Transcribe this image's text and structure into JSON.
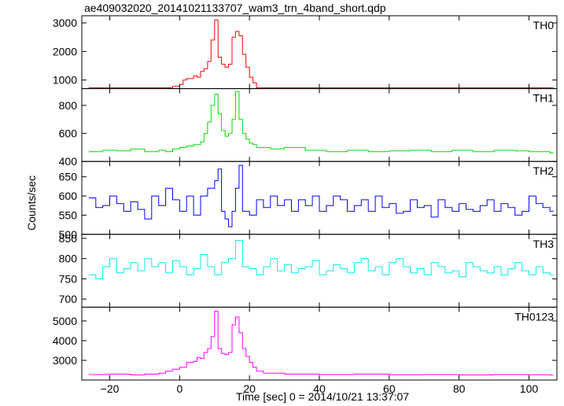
{
  "window_title": "ae409032020_20141021133707_wam3_trn_4band_short.qdp",
  "chart_data": {
    "type": "line",
    "title": "ae409032020_20141021133707_wam3_trn_4band_short.qdp",
    "xlabel": "Time [sec] 0 = 2014/10/21 13:37:07",
    "ylabel": "Counts/sec",
    "xlim": [
      -28,
      108
    ],
    "xticks": [
      -20,
      0,
      20,
      40,
      60,
      80,
      100
    ],
    "series": [
      {
        "name": "TH0",
        "color": "#ff0000",
        "ylim": [
          700,
          3250
        ],
        "yticks": [
          1000,
          2000,
          3000
        ],
        "x": [
          -26,
          -18,
          -12,
          -8,
          -6,
          -4,
          -2,
          0,
          1,
          2,
          3,
          4,
          5,
          6,
          7,
          8,
          9,
          10,
          11,
          12,
          13,
          14,
          15,
          16,
          17,
          18,
          19,
          20,
          21,
          22,
          24,
          30,
          40,
          50,
          60,
          70,
          80,
          90,
          100,
          106
        ],
        "values": [
          540,
          560,
          550,
          580,
          610,
          700,
          780,
          850,
          1000,
          1050,
          1050,
          1150,
          1100,
          1300,
          1400,
          1650,
          2400,
          3100,
          1800,
          1550,
          1450,
          1550,
          2500,
          2700,
          2550,
          1900,
          1450,
          1100,
          900,
          720,
          600,
          560,
          550,
          570,
          540,
          550,
          540,
          560,
          540,
          540
        ]
      },
      {
        "name": "TH1",
        "color": "#00dd00",
        "ylim": [
          400,
          920
        ],
        "yticks": [
          400,
          600,
          800
        ],
        "x": [
          -26,
          -22,
          -18,
          -14,
          -10,
          -6,
          -4,
          -2,
          0,
          2,
          4,
          6,
          7,
          8,
          9,
          10,
          11,
          12,
          13,
          14,
          15,
          16,
          17,
          18,
          19,
          20,
          21,
          22,
          26,
          30,
          36,
          42,
          48,
          54,
          60,
          66,
          72,
          78,
          84,
          90,
          96,
          100,
          106
        ],
        "values": [
          470,
          480,
          475,
          490,
          470,
          480,
          470,
          490,
          500,
          510,
          520,
          540,
          600,
          680,
          800,
          880,
          740,
          620,
          580,
          600,
          700,
          900,
          700,
          600,
          560,
          530,
          520,
          500,
          490,
          500,
          480,
          470,
          480,
          470,
          475,
          480,
          470,
          480,
          470,
          480,
          475,
          470,
          460
        ]
      },
      {
        "name": "TH2",
        "color": "#0000ff",
        "ylim": [
          500,
          690
        ],
        "yticks": [
          500,
          550,
          600,
          650
        ],
        "x": [
          -26,
          -24,
          -22,
          -20,
          -18,
          -16,
          -14,
          -12,
          -10,
          -8,
          -6,
          -4,
          -2,
          0,
          2,
          4,
          6,
          8,
          10,
          11,
          12,
          13,
          14,
          15,
          16,
          17,
          18,
          20,
          22,
          24,
          26,
          28,
          30,
          32,
          34,
          36,
          38,
          40,
          42,
          44,
          46,
          48,
          50,
          52,
          54,
          56,
          58,
          60,
          62,
          64,
          66,
          68,
          70,
          72,
          74,
          76,
          78,
          80,
          82,
          84,
          86,
          88,
          90,
          92,
          94,
          96,
          98,
          100,
          102,
          104,
          106
        ],
        "values": [
          595,
          570,
          575,
          600,
          580,
          560,
          585,
          565,
          540,
          600,
          575,
          620,
          590,
          560,
          600,
          550,
          600,
          620,
          640,
          670,
          560,
          540,
          520,
          560,
          620,
          680,
          560,
          550,
          590,
          570,
          600,
          575,
          590,
          560,
          590,
          575,
          600,
          560,
          575,
          600,
          590,
          560,
          575,
          590,
          560,
          600,
          570,
          580,
          555,
          560,
          590,
          570,
          575,
          545,
          590,
          570,
          560,
          580,
          565,
          560,
          575,
          590,
          560,
          580,
          570,
          550,
          560,
          600,
          580,
          570,
          560
        ]
      },
      {
        "name": "TH3",
        "color": "#00eeee",
        "ylim": [
          680,
          860
        ],
        "yticks": [
          700,
          750,
          800,
          850
        ],
        "x": [
          -26,
          -24,
          -22,
          -20,
          -18,
          -16,
          -14,
          -12,
          -10,
          -8,
          -6,
          -4,
          -2,
          0,
          2,
          4,
          6,
          8,
          10,
          12,
          14,
          16,
          18,
          20,
          22,
          24,
          26,
          28,
          30,
          32,
          34,
          36,
          38,
          40,
          42,
          44,
          46,
          48,
          50,
          52,
          54,
          56,
          58,
          60,
          62,
          64,
          66,
          68,
          70,
          72,
          74,
          76,
          78,
          80,
          82,
          84,
          86,
          88,
          90,
          92,
          94,
          96,
          98,
          100,
          102,
          104,
          106
        ],
        "values": [
          760,
          750,
          780,
          800,
          765,
          775,
          790,
          770,
          800,
          780,
          790,
          765,
          795,
          780,
          760,
          775,
          810,
          780,
          760,
          790,
          800,
          845,
          780,
          775,
          760,
          780,
          800,
          770,
          785,
          765,
          775,
          780,
          795,
          760,
          770,
          785,
          775,
          765,
          790,
          800,
          770,
          780,
          760,
          790,
          800,
          780,
          765,
          775,
          760,
          790,
          780,
          765,
          770,
          755,
          790,
          780,
          770,
          765,
          780,
          760,
          775,
          790,
          770,
          760,
          780,
          765,
          760
        ]
      },
      {
        "name": "TH0123",
        "color": "#ff00ff",
        "ylim": [
          2000,
          5700
        ],
        "yticks": [
          3000,
          4000,
          5000
        ],
        "x": [
          -26,
          -20,
          -14,
          -10,
          -6,
          -4,
          -2,
          0,
          2,
          4,
          5,
          6,
          7,
          8,
          9,
          10,
          11,
          12,
          13,
          14,
          15,
          16,
          17,
          18,
          19,
          20,
          21,
          22,
          24,
          30,
          40,
          50,
          60,
          70,
          80,
          90,
          100,
          106
        ],
        "values": [
          2280,
          2300,
          2260,
          2300,
          2350,
          2450,
          2550,
          2650,
          2900,
          2950,
          3150,
          3100,
          3400,
          3600,
          4200,
          5500,
          3600,
          3350,
          3300,
          3400,
          4800,
          5200,
          4400,
          3600,
          3200,
          2900,
          2650,
          2450,
          2350,
          2300,
          2280,
          2300,
          2270,
          2280,
          2260,
          2280,
          2270,
          2250
        ]
      }
    ]
  }
}
